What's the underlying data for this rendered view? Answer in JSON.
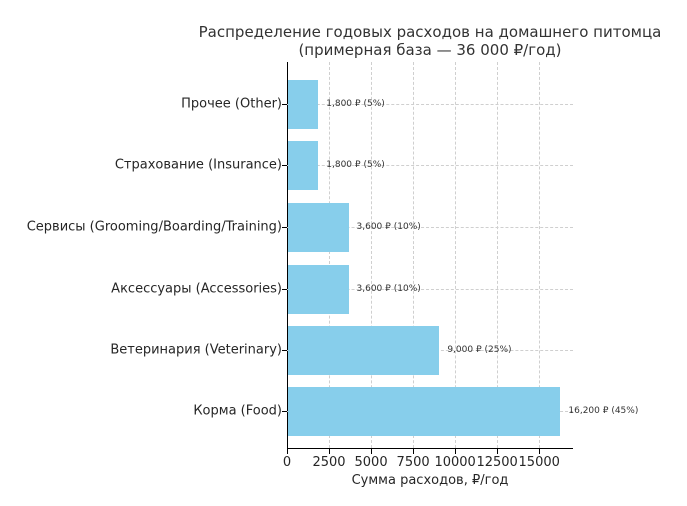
{
  "chart_data": {
    "type": "bar",
    "orientation": "horizontal",
    "title": "Распределение годовых расходов на домашнего питомца (примерная база — 36 000 ₽/год)",
    "title_lines": [
      "Распределение годовых расходов на домашнего питомца",
      "(примерная база — 36 000 ₽/год)"
    ],
    "xlabel": "Сумма расходов, ₽/год",
    "ylabel": "",
    "categories": [
      "Прочее (Other)",
      "Страхование (Insurance)",
      "Сервисы (Grooming/Boarding/Training)",
      "Аксессуары (Accessories)",
      "Ветеринария (Veterinary)",
      "Корма (Food)"
    ],
    "values": [
      1800,
      1800,
      3600,
      3600,
      9000,
      16200
    ],
    "data_labels": [
      "1,800 ₽ (5%)",
      "1,800 ₽ (5%)",
      "3,600 ₽ (10%)",
      "3,600 ₽ (10%)",
      "9,000 ₽ (25%)",
      "16,200 ₽ (45%)"
    ],
    "percentages": [
      5,
      5,
      10,
      10,
      25,
      45
    ],
    "xticks": [
      "0",
      "2500",
      "5000",
      "7500",
      "10000",
      "12500",
      "15000"
    ],
    "xtick_values": [
      0,
      2500,
      5000,
      7500,
      10000,
      12500,
      15000
    ],
    "xlim": [
      0,
      17010
    ],
    "grid": true,
    "bar_color": "#87ceeb"
  }
}
